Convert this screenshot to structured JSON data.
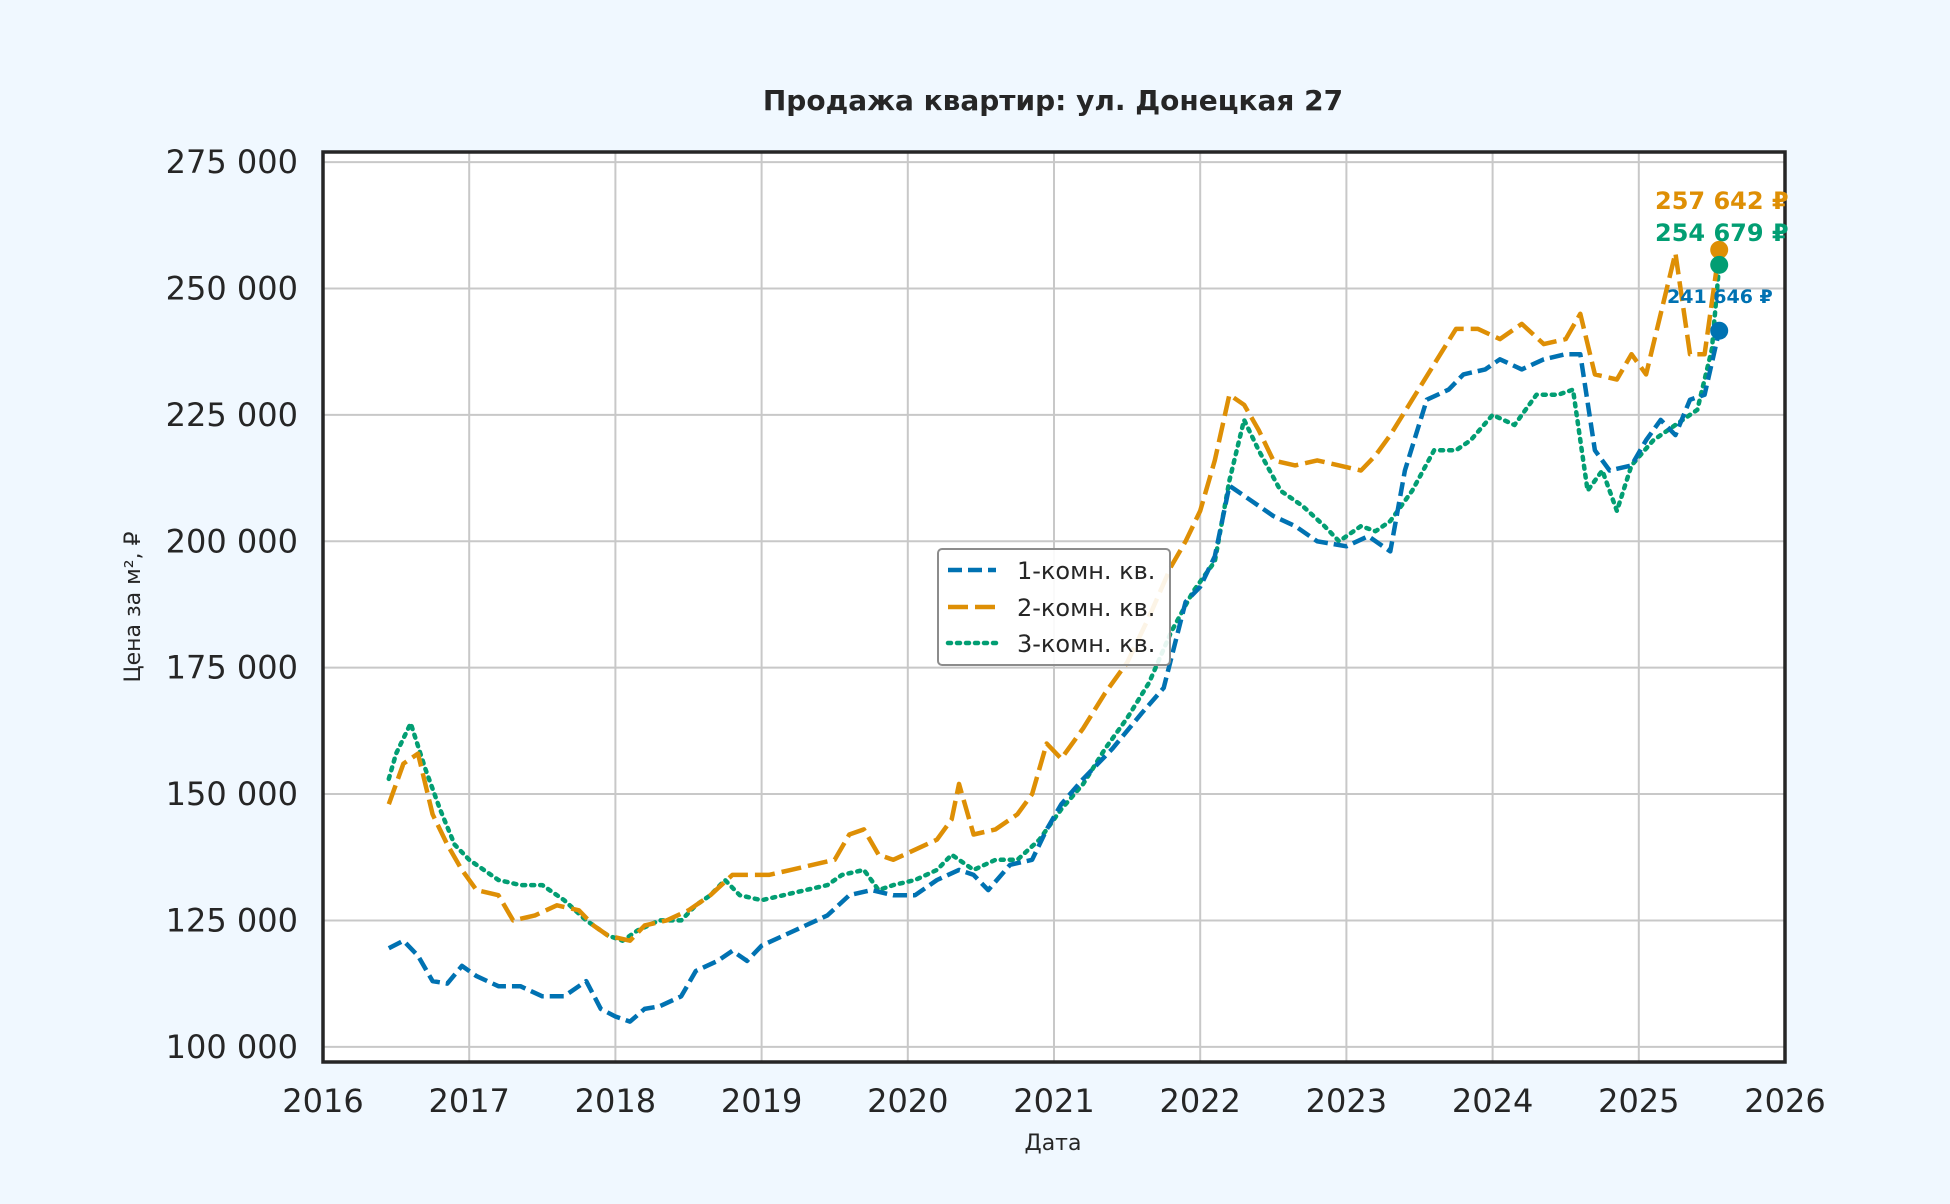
{
  "chart_data": {
    "type": "line",
    "title": "Продажа квартир: ул. Донецкая 27",
    "xlabel": "Дата",
    "ylabel": "Цена за м², ₽",
    "xlim": [
      2016.0,
      2026.0
    ],
    "ylim": [
      97000,
      277000
    ],
    "x_ticks": [
      "2016",
      "2017",
      "2018",
      "2019",
      "2020",
      "2021",
      "2022",
      "2023",
      "2024",
      "2025",
      "2026"
    ],
    "x_tick_values": [
      2016,
      2017,
      2018,
      2019,
      2020,
      2021,
      2022,
      2023,
      2024,
      2025,
      2026
    ],
    "y_ticks": [
      "100 000",
      "125 000",
      "150 000",
      "175 000",
      "200 000",
      "225 000",
      "250 000",
      "275 000"
    ],
    "y_tick_values": [
      100000,
      125000,
      150000,
      175000,
      200000,
      225000,
      250000,
      275000
    ],
    "grid": true,
    "legend_position": "center",
    "series": [
      {
        "name": "1-комн. кв.",
        "color": "#0072b2",
        "dash": "dashed",
        "x": [
          2016.45,
          2016.55,
          2016.65,
          2016.75,
          2016.85,
          2016.95,
          2017.05,
          2017.2,
          2017.35,
          2017.5,
          2017.65,
          2017.8,
          2017.9,
          2018.0,
          2018.1,
          2018.2,
          2018.3,
          2018.45,
          2018.55,
          2018.7,
          2018.8,
          2018.9,
          2019.0,
          2019.15,
          2019.3,
          2019.45,
          2019.6,
          2019.75,
          2019.9,
          2020.05,
          2020.2,
          2020.35,
          2020.45,
          2020.55,
          2020.7,
          2020.85,
          2020.95,
          2021.05,
          2021.2,
          2021.4,
          2021.6,
          2021.75,
          2021.9,
          2022.0,
          2022.1,
          2022.2,
          2022.35,
          2022.5,
          2022.65,
          2022.8,
          2023.0,
          2023.15,
          2023.3,
          2023.4,
          2023.55,
          2023.7,
          2023.8,
          2023.95,
          2024.05,
          2024.2,
          2024.35,
          2024.5,
          2024.6,
          2024.7,
          2024.8,
          2024.95,
          2025.05,
          2025.15,
          2025.25,
          2025.35,
          2025.45,
          2025.55
        ],
        "values": [
          119500,
          121000,
          118000,
          113000,
          112500,
          116000,
          114000,
          112000,
          112000,
          110000,
          110000,
          113000,
          107500,
          106000,
          105000,
          107500,
          108000,
          110000,
          115000,
          117000,
          119000,
          117000,
          120000,
          122000,
          124000,
          126000,
          130000,
          131000,
          130000,
          130000,
          133000,
          135000,
          134000,
          131000,
          136000,
          137000,
          143000,
          148000,
          153000,
          159000,
          166000,
          171000,
          188000,
          191000,
          197000,
          211000,
          208000,
          205000,
          203000,
          200000,
          199000,
          201000,
          198000,
          214000,
          228000,
          230000,
          233000,
          234000,
          236000,
          234000,
          236000,
          237000,
          237000,
          218000,
          214000,
          215000,
          220000,
          224000,
          221000,
          228000,
          229000,
          241646
        ]
      },
      {
        "name": "2-комн. кв.",
        "color": "#de8f05",
        "dash": "longdash",
        "x": [
          2016.45,
          2016.55,
          2016.65,
          2016.75,
          2016.85,
          2016.95,
          2017.05,
          2017.2,
          2017.3,
          2017.45,
          2017.6,
          2017.75,
          2017.85,
          2017.95,
          2018.1,
          2018.2,
          2018.35,
          2018.5,
          2018.65,
          2018.8,
          2018.95,
          2019.05,
          2019.2,
          2019.35,
          2019.5,
          2019.6,
          2019.7,
          2019.8,
          2019.9,
          2020.05,
          2020.2,
          2020.3,
          2020.35,
          2020.45,
          2020.6,
          2020.75,
          2020.85,
          2020.95,
          2021.05,
          2021.2,
          2021.35,
          2021.5,
          2021.65,
          2021.8,
          2021.9,
          2022.0,
          2022.1,
          2022.2,
          2022.3,
          2022.4,
          2022.5,
          2022.65,
          2022.8,
          2022.95,
          2023.1,
          2023.2,
          2023.3,
          2023.45,
          2023.6,
          2023.75,
          2023.9,
          2024.05,
          2024.2,
          2024.35,
          2024.5,
          2024.6,
          2024.7,
          2024.85,
          2024.95,
          2025.05,
          2025.15,
          2025.25,
          2025.35,
          2025.45,
          2025.55
        ],
        "values": [
          148000,
          156000,
          158000,
          146000,
          140000,
          135000,
          131000,
          130000,
          125000,
          126000,
          128000,
          127000,
          124000,
          122000,
          121000,
          124000,
          125000,
          127000,
          130000,
          134000,
          134000,
          134000,
          135000,
          136000,
          137000,
          142000,
          143000,
          138000,
          137000,
          139000,
          141000,
          145000,
          152000,
          142000,
          143000,
          146000,
          150000,
          160000,
          157000,
          163000,
          170000,
          176000,
          185000,
          195000,
          200000,
          206000,
          216000,
          229000,
          227000,
          222000,
          216000,
          215000,
          216000,
          215000,
          214000,
          217000,
          221000,
          228000,
          235000,
          242000,
          242000,
          240000,
          243000,
          239000,
          240000,
          245000,
          233000,
          232000,
          237000,
          233000,
          245000,
          257000,
          237000,
          237000,
          257642
        ]
      },
      {
        "name": "3-комн. кв.",
        "color": "#029e73",
        "dash": "dotted",
        "x": [
          2016.45,
          2016.5,
          2016.6,
          2016.7,
          2016.8,
          2016.9,
          2017.0,
          2017.1,
          2017.2,
          2017.35,
          2017.5,
          2017.65,
          2017.8,
          2017.95,
          2018.05,
          2018.15,
          2018.3,
          2018.45,
          2018.55,
          2018.65,
          2018.75,
          2018.85,
          2019.0,
          2019.15,
          2019.3,
          2019.45,
          2019.55,
          2019.7,
          2019.8,
          2019.9,
          2020.05,
          2020.2,
          2020.3,
          2020.45,
          2020.6,
          2020.75,
          2020.9,
          2021.05,
          2021.2,
          2021.35,
          2021.5,
          2021.65,
          2021.8,
          2021.95,
          2022.1,
          2022.2,
          2022.3,
          2022.4,
          2022.55,
          2022.7,
          2022.85,
          2022.95,
          2023.1,
          2023.2,
          2023.3,
          2023.45,
          2023.6,
          2023.75,
          2023.85,
          2024.0,
          2024.15,
          2024.3,
          2024.45,
          2024.55,
          2024.65,
          2024.75,
          2024.85,
          2024.95,
          2025.1,
          2025.2,
          2025.3,
          2025.4,
          2025.5,
          2025.55
        ],
        "values": [
          153000,
          158000,
          164000,
          155000,
          147000,
          140000,
          137000,
          135000,
          133000,
          132000,
          132000,
          129000,
          125000,
          122000,
          121000,
          123000,
          125000,
          125000,
          128000,
          130000,
          133000,
          130000,
          129000,
          130000,
          131000,
          132000,
          134000,
          135000,
          131000,
          132000,
          133000,
          135000,
          138000,
          135000,
          137000,
          137000,
          141000,
          147000,
          152000,
          159000,
          165000,
          172000,
          182000,
          190000,
          196000,
          212000,
          224000,
          218000,
          210000,
          207000,
          203000,
          200000,
          203000,
          202000,
          204000,
          210000,
          218000,
          218000,
          220000,
          225000,
          223000,
          229000,
          229000,
          230000,
          210000,
          214000,
          206000,
          215000,
          220000,
          222000,
          224000,
          226000,
          238000,
          254679
        ]
      }
    ],
    "end_labels": [
      {
        "series": "2-комн. кв.",
        "text": "257 642 ₽"
      },
      {
        "series": "3-комн. кв.",
        "text": "254 679 ₽"
      },
      {
        "series": "1-комн. кв.",
        "text": "241 646 ₽"
      }
    ]
  }
}
